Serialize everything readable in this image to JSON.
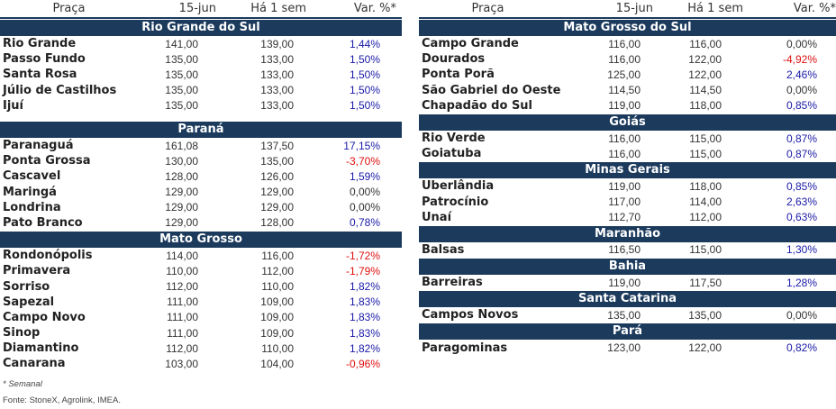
{
  "headers": {
    "place": "Praça",
    "date": "15-jun",
    "week": "Há 1 sem",
    "var": "Var. %*"
  },
  "left": [
    {
      "region": "Rio Grande do Sul",
      "rows": [
        {
          "name": "Rio Grande",
          "a": "141,00",
          "b": "139,00",
          "v": "1,44%",
          "sign": "pos"
        },
        {
          "name": "Passo Fundo",
          "a": "135,00",
          "b": "133,00",
          "v": "1,50%",
          "sign": "pos"
        },
        {
          "name": "Santa Rosa",
          "a": "135,00",
          "b": "133,00",
          "v": "1,50%",
          "sign": "pos"
        },
        {
          "name": "Júlio de Castilhos",
          "a": "135,00",
          "b": "133,00",
          "v": "1,50%",
          "sign": "pos"
        },
        {
          "name": "Ijuí",
          "a": "135,00",
          "b": "133,00",
          "v": "1,50%",
          "sign": "pos"
        }
      ]
    },
    {
      "region": "Paraná",
      "rows": [
        {
          "name": "Paranaguá",
          "a": "161,08",
          "b": "137,50",
          "v": "17,15%",
          "sign": "pos"
        },
        {
          "name": "Ponta Grossa",
          "a": "130,00",
          "b": "135,00",
          "v": "-3,70%",
          "sign": "neg"
        },
        {
          "name": "Cascavel",
          "a": "128,00",
          "b": "126,00",
          "v": "1,59%",
          "sign": "pos"
        },
        {
          "name": "Maringá",
          "a": "129,00",
          "b": "129,00",
          "v": "0,00%",
          "sign": "zero"
        },
        {
          "name": "Londrina",
          "a": "129,00",
          "b": "129,00",
          "v": "0,00%",
          "sign": "zero"
        },
        {
          "name": "Pato Branco",
          "a": "129,00",
          "b": "128,00",
          "v": "0,78%",
          "sign": "pos"
        }
      ]
    },
    {
      "region": "Mato Grosso",
      "rows": [
        {
          "name": "Rondonópolis",
          "a": "114,00",
          "b": "116,00",
          "v": "-1,72%",
          "sign": "neg"
        },
        {
          "name": "Primavera",
          "a": "110,00",
          "b": "112,00",
          "v": "-1,79%",
          "sign": "neg"
        },
        {
          "name": "Sorriso",
          "a": "112,00",
          "b": "110,00",
          "v": "1,82%",
          "sign": "pos"
        },
        {
          "name": "Sapezal",
          "a": "111,00",
          "b": "109,00",
          "v": "1,83%",
          "sign": "pos"
        },
        {
          "name": "Campo Novo",
          "a": "111,00",
          "b": "109,00",
          "v": "1,83%",
          "sign": "pos"
        },
        {
          "name": "Sinop",
          "a": "111,00",
          "b": "109,00",
          "v": "1,83%",
          "sign": "pos"
        },
        {
          "name": "Diamantino",
          "a": "112,00",
          "b": "110,00",
          "v": "1,82%",
          "sign": "pos"
        },
        {
          "name": "Canarana",
          "a": "103,00",
          "b": "104,00",
          "v": "-0,96%",
          "sign": "neg"
        }
      ]
    }
  ],
  "right": [
    {
      "region": "Mato Grosso do Sul",
      "rows": [
        {
          "name": "Campo Grande",
          "a": "116,00",
          "b": "116,00",
          "v": "0,00%",
          "sign": "zero"
        },
        {
          "name": "Dourados",
          "a": "116,00",
          "b": "122,00",
          "v": "-4,92%",
          "sign": "neg"
        },
        {
          "name": "Ponta Porã",
          "a": "125,00",
          "b": "122,00",
          "v": "2,46%",
          "sign": "pos"
        },
        {
          "name": "São Gabriel do Oeste",
          "a": "114,50",
          "b": "114,50",
          "v": "0,00%",
          "sign": "zero"
        },
        {
          "name": "Chapadão do Sul",
          "a": "119,00",
          "b": "118,00",
          "v": "0,85%",
          "sign": "pos"
        }
      ]
    },
    {
      "region": "Goiás",
      "rows": [
        {
          "name": "Rio Verde",
          "a": "116,00",
          "b": "115,00",
          "v": "0,87%",
          "sign": "pos"
        },
        {
          "name": "Goiatuba",
          "a": "116,00",
          "b": "115,00",
          "v": "0,87%",
          "sign": "pos"
        }
      ]
    },
    {
      "region": "Minas Gerais",
      "rows": [
        {
          "name": "Uberlândia",
          "a": "119,00",
          "b": "118,00",
          "v": "0,85%",
          "sign": "pos"
        },
        {
          "name": "Patrocínio",
          "a": "117,00",
          "b": "114,00",
          "v": "2,63%",
          "sign": "pos"
        },
        {
          "name": "Unaí",
          "a": "112,70",
          "b": "112,00",
          "v": "0,63%",
          "sign": "pos"
        }
      ]
    },
    {
      "region": "Maranhão",
      "rows": [
        {
          "name": "Balsas",
          "a": "116,50",
          "b": "115,00",
          "v": "1,30%",
          "sign": "pos"
        }
      ]
    },
    {
      "region": "Bahia",
      "rows": [
        {
          "name": "Barreiras",
          "a": "119,00",
          "b": "117,50",
          "v": "1,28%",
          "sign": "pos"
        }
      ]
    },
    {
      "region": "Santa Catarina",
      "rows": [
        {
          "name": "Campos Novos",
          "a": "135,00",
          "b": "135,00",
          "v": "0,00%",
          "sign": "zero"
        }
      ]
    },
    {
      "region": "Pará",
      "rows": [
        {
          "name": "Paragominas",
          "a": "123,00",
          "b": "122,00",
          "v": "0,82%",
          "sign": "pos"
        }
      ]
    }
  ],
  "footer": {
    "note": "* Semanal",
    "source": "Fonte: StoneX, Agrolink, IMEA."
  }
}
